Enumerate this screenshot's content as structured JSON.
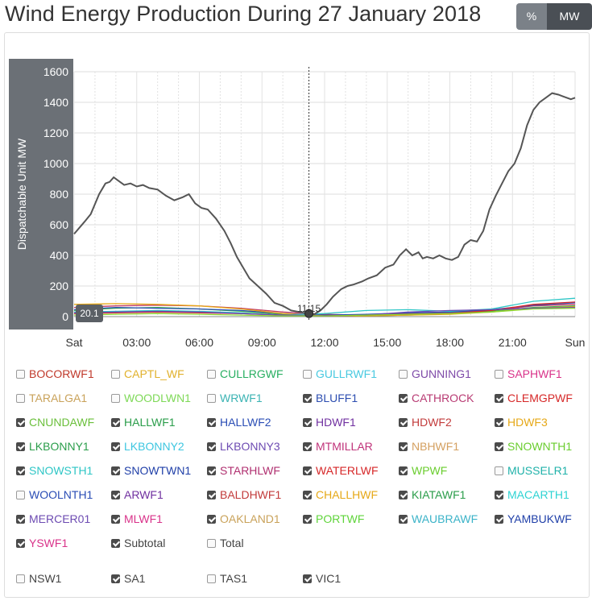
{
  "title": "Wind Energy Production During 27 January 2018",
  "unit_toggle": {
    "percent_label": "%",
    "mw_label": "MW",
    "active": "MW"
  },
  "tooltip": {
    "value": "20.1",
    "time": "11:15"
  },
  "chart_data": {
    "type": "line",
    "ylabel": "Dispatchable Unit MW",
    "ylim": [
      0,
      1600
    ],
    "yticks": [
      "0",
      "200",
      "400",
      "600",
      "800",
      "1000",
      "1200",
      "1400",
      "1600"
    ],
    "xlim": [
      0,
      24
    ],
    "xticks": [
      {
        "x": 0,
        "label": "Sat"
      },
      {
        "x": 3,
        "label": "03:00"
      },
      {
        "x": 6,
        "label": "06:00"
      },
      {
        "x": 9,
        "label": "09:00"
      },
      {
        "x": 12,
        "label": "12:00"
      },
      {
        "x": 15,
        "label": "15:00"
      },
      {
        "x": 18,
        "label": "18:00"
      },
      {
        "x": 21,
        "label": "21:00"
      },
      {
        "x": 24,
        "label": "Sun"
      }
    ],
    "grid": true,
    "series": [
      {
        "name": "Subtotal",
        "color": "#555555",
        "x": [
          0,
          0.5,
          0.8,
          1.2,
          1.5,
          1.7,
          1.9,
          2.1,
          2.4,
          2.7,
          3.0,
          3.3,
          3.6,
          4.0,
          4.4,
          4.8,
          5.2,
          5.5,
          5.8,
          6.1,
          6.4,
          6.8,
          7.2,
          7.5,
          7.8,
          8.1,
          8.4,
          8.8,
          9.2,
          9.6,
          10.0,
          10.4,
          10.8,
          11.0,
          11.25,
          11.5,
          11.8,
          12.1,
          12.4,
          12.8,
          13.1,
          13.4,
          13.8,
          14.1,
          14.5,
          14.9,
          15.3,
          15.6,
          15.9,
          16.2,
          16.5,
          16.7,
          16.9,
          17.2,
          17.5,
          17.8,
          18.1,
          18.4,
          18.7,
          19.0,
          19.3,
          19.6,
          19.9,
          20.2,
          20.5,
          20.8,
          21.1,
          21.4,
          21.7,
          22.0,
          22.3,
          22.6,
          22.9,
          23.2,
          23.4,
          23.6,
          23.8,
          24.0
        ],
        "y": [
          540,
          620,
          670,
          800,
          870,
          880,
          910,
          890,
          860,
          870,
          850,
          860,
          840,
          830,
          790,
          760,
          780,
          800,
          740,
          710,
          700,
          640,
          560,
          480,
          390,
          320,
          250,
          200,
          150,
          90,
          70,
          40,
          30,
          25,
          20,
          15,
          40,
          80,
          130,
          180,
          200,
          210,
          230,
          250,
          270,
          320,
          340,
          400,
          440,
          400,
          420,
          380,
          390,
          380,
          400,
          380,
          370,
          390,
          470,
          500,
          490,
          560,
          700,
          790,
          870,
          950,
          1000,
          1100,
          1250,
          1350,
          1400,
          1430,
          1460,
          1450,
          1440,
          1430,
          1420,
          1430
        ]
      },
      {
        "name": "CATHROCK",
        "color": "#c23b64",
        "x": [
          0,
          2,
          4,
          6,
          8,
          10,
          12,
          14,
          16,
          18,
          20,
          22,
          24
        ],
        "y": [
          60,
          70,
          75,
          70,
          55,
          30,
          15,
          10,
          20,
          25,
          40,
          70,
          80
        ]
      },
      {
        "name": "HALLWF1",
        "color": "#3cb44b",
        "x": [
          0,
          2,
          4,
          6,
          8,
          10,
          12,
          14,
          16,
          18,
          20,
          22,
          24
        ],
        "y": [
          40,
          55,
          60,
          50,
          35,
          15,
          5,
          5,
          10,
          20,
          35,
          60,
          70
        ]
      },
      {
        "name": "SNOWTWN1",
        "color": "#2a4db5",
        "x": [
          0,
          2,
          4,
          6,
          8,
          10,
          12,
          14,
          16,
          18,
          20,
          22,
          24
        ],
        "y": [
          45,
          60,
          55,
          50,
          40,
          20,
          10,
          15,
          25,
          30,
          45,
          75,
          90
        ]
      },
      {
        "name": "HDWF3",
        "color": "#e6a817",
        "x": [
          0,
          2,
          4,
          6,
          8,
          10,
          12,
          14,
          16,
          18,
          20,
          22,
          24
        ],
        "y": [
          80,
          85,
          80,
          70,
          50,
          20,
          5,
          5,
          10,
          15,
          30,
          55,
          65
        ]
      },
      {
        "name": "SNOWSTH1",
        "color": "#2ec6c6",
        "x": [
          0,
          2,
          4,
          6,
          8,
          10,
          12,
          14,
          16,
          18,
          20,
          22,
          24
        ],
        "y": [
          30,
          35,
          40,
          35,
          25,
          10,
          20,
          40,
          45,
          35,
          50,
          100,
          120
        ]
      },
      {
        "name": "WATERLWF",
        "color": "#d62728",
        "x": [
          0,
          2,
          4,
          6,
          8,
          10,
          12,
          14,
          16,
          18,
          20,
          22,
          24
        ],
        "y": [
          20,
          25,
          30,
          25,
          20,
          10,
          5,
          10,
          15,
          20,
          40,
          80,
          95
        ]
      },
      {
        "name": "LKBONNY3",
        "color": "#6d4bb2",
        "x": [
          0,
          2,
          4,
          6,
          8,
          10,
          12,
          14,
          16,
          18,
          20,
          22,
          24
        ],
        "y": [
          25,
          30,
          35,
          30,
          20,
          10,
          5,
          10,
          30,
          40,
          45,
          55,
          60
        ]
      },
      {
        "name": "CNUNDAWF",
        "color": "#8ad832",
        "x": [
          0,
          2,
          4,
          6,
          8,
          10,
          12,
          14,
          16,
          18,
          20,
          22,
          24
        ],
        "y": [
          10,
          15,
          20,
          15,
          10,
          5,
          5,
          10,
          15,
          20,
          30,
          50,
          55
        ]
      }
    ]
  },
  "checkboxes": [
    {
      "label": "BOCORWF1",
      "color": "#c0392b",
      "checked": false
    },
    {
      "label": "CAPTL_WF",
      "color": "#e1b12c",
      "checked": false
    },
    {
      "label": "CULLRGWF",
      "color": "#27ae60",
      "checked": false
    },
    {
      "label": "GULLRWF1",
      "color": "#48c9e0",
      "checked": false
    },
    {
      "label": "GUNNING1",
      "color": "#7e4aa8",
      "checked": false
    },
    {
      "label": "SAPHWF1",
      "color": "#d9338a",
      "checked": false
    },
    {
      "label": "TARALGA1",
      "color": "#c9a25a",
      "checked": false
    },
    {
      "label": "WOODLWN1",
      "color": "#7ed957",
      "checked": false
    },
    {
      "label": "WRWF1",
      "color": "#3bb3b3",
      "checked": false
    },
    {
      "label": "BLUFF1",
      "color": "#2c4db0",
      "checked": true
    },
    {
      "label": "CATHROCK",
      "color": "#b83b73",
      "checked": true
    },
    {
      "label": "CLEMGPWF",
      "color": "#d62828",
      "checked": true
    },
    {
      "label": "CNUNDAWF",
      "color": "#6abf3a",
      "checked": true
    },
    {
      "label": "HALLWF1",
      "color": "#2a9d4a",
      "checked": true
    },
    {
      "label": "HALLWF2",
      "color": "#2a4db5",
      "checked": true
    },
    {
      "label": "HDWF1",
      "color": "#7030a0",
      "checked": true
    },
    {
      "label": "HDWF2",
      "color": "#c23b3b",
      "checked": true
    },
    {
      "label": "HDWF3",
      "color": "#e6a817",
      "checked": true
    },
    {
      "label": "LKBONNY1",
      "color": "#2a9d4a",
      "checked": true
    },
    {
      "label": "LKBONNY2",
      "color": "#3dc6e0",
      "checked": true
    },
    {
      "label": "LKBONNY3",
      "color": "#6d4bb2",
      "checked": true
    },
    {
      "label": "MTMILLAR",
      "color": "#c0337a",
      "checked": true
    },
    {
      "label": "NBHWF1",
      "color": "#d4a060",
      "checked": true
    },
    {
      "label": "SNOWNTH1",
      "color": "#6acd2e",
      "checked": true
    },
    {
      "label": "SNOWSTH1",
      "color": "#2ec6c6",
      "checked": true
    },
    {
      "label": "SNOWTWN1",
      "color": "#1f3fa8",
      "checked": true
    },
    {
      "label": "STARHLWF",
      "color": "#b03070",
      "checked": true
    },
    {
      "label": "WATERLWF",
      "color": "#d62728",
      "checked": true
    },
    {
      "label": "WPWF",
      "color": "#6acd2e",
      "checked": true
    },
    {
      "label": "MUSSELR1",
      "color": "#20b2aa",
      "checked": false
    },
    {
      "label": "WOOLNTH1",
      "color": "#2a4db5",
      "checked": false
    },
    {
      "label": "ARWF1",
      "color": "#7030a0",
      "checked": true
    },
    {
      "label": "BALDHWF1",
      "color": "#c23b3b",
      "checked": true
    },
    {
      "label": "CHALLHWF",
      "color": "#e6a817",
      "checked": true
    },
    {
      "label": "KIATAWF1",
      "color": "#2a9d4a",
      "checked": true
    },
    {
      "label": "MACARTH1",
      "color": "#2ed3d3",
      "checked": true
    },
    {
      "label": "MERCER01",
      "color": "#6d4bb2",
      "checked": true
    },
    {
      "label": "MLWF1",
      "color": "#d9338a",
      "checked": true
    },
    {
      "label": "OAKLAND1",
      "color": "#c9a25a",
      "checked": true
    },
    {
      "label": "PORTWF",
      "color": "#5fd43a",
      "checked": true
    },
    {
      "label": "WAUBRAWF",
      "color": "#3bb3c8",
      "checked": true
    },
    {
      "label": "YAMBUKWF",
      "color": "#1f3fa8",
      "checked": true
    },
    {
      "label": "YSWF1",
      "color": "#d9338a",
      "checked": true
    },
    {
      "label": "Subtotal",
      "color": "#555555",
      "checked": true
    },
    {
      "label": "Total",
      "color": "#555555",
      "checked": false
    }
  ],
  "regions": [
    {
      "label": "NSW1",
      "checked": false
    },
    {
      "label": "SA1",
      "checked": true
    },
    {
      "label": "TAS1",
      "checked": false
    },
    {
      "label": "VIC1",
      "checked": true
    }
  ]
}
